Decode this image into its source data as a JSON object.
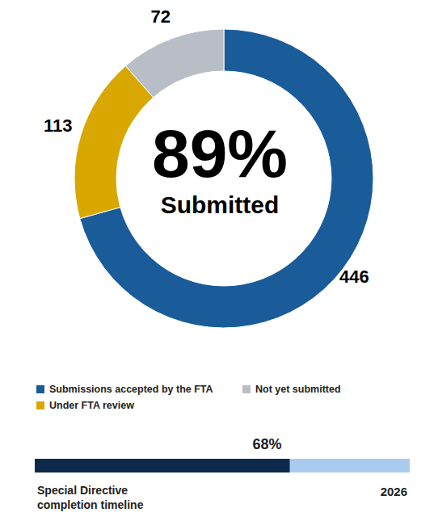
{
  "chart_data": [
    {
      "type": "pie",
      "categories": [
        "Submissions accepted by the FTA",
        "Under FTA review",
        "Not yet submitted"
      ],
      "values": [
        446,
        113,
        72
      ],
      "colors": [
        "#1a5c9a",
        "#d9a800",
        "#b9bdc6"
      ],
      "data_labels": true,
      "legend": "bottom",
      "center": {
        "value": 89,
        "label": "89%"
      },
      "center_text": "Submitted"
    },
    {
      "type": "bar",
      "orientation": "horizontal",
      "title": "Special Directive completion timeline",
      "values": [
        68
      ],
      "value_labels": [
        "68%"
      ],
      "xlim": [
        0,
        100
      ],
      "color": "#0d2a4d",
      "data_labels": true,
      "tick_labels": false,
      "end_label": "2026"
    }
  ]
}
